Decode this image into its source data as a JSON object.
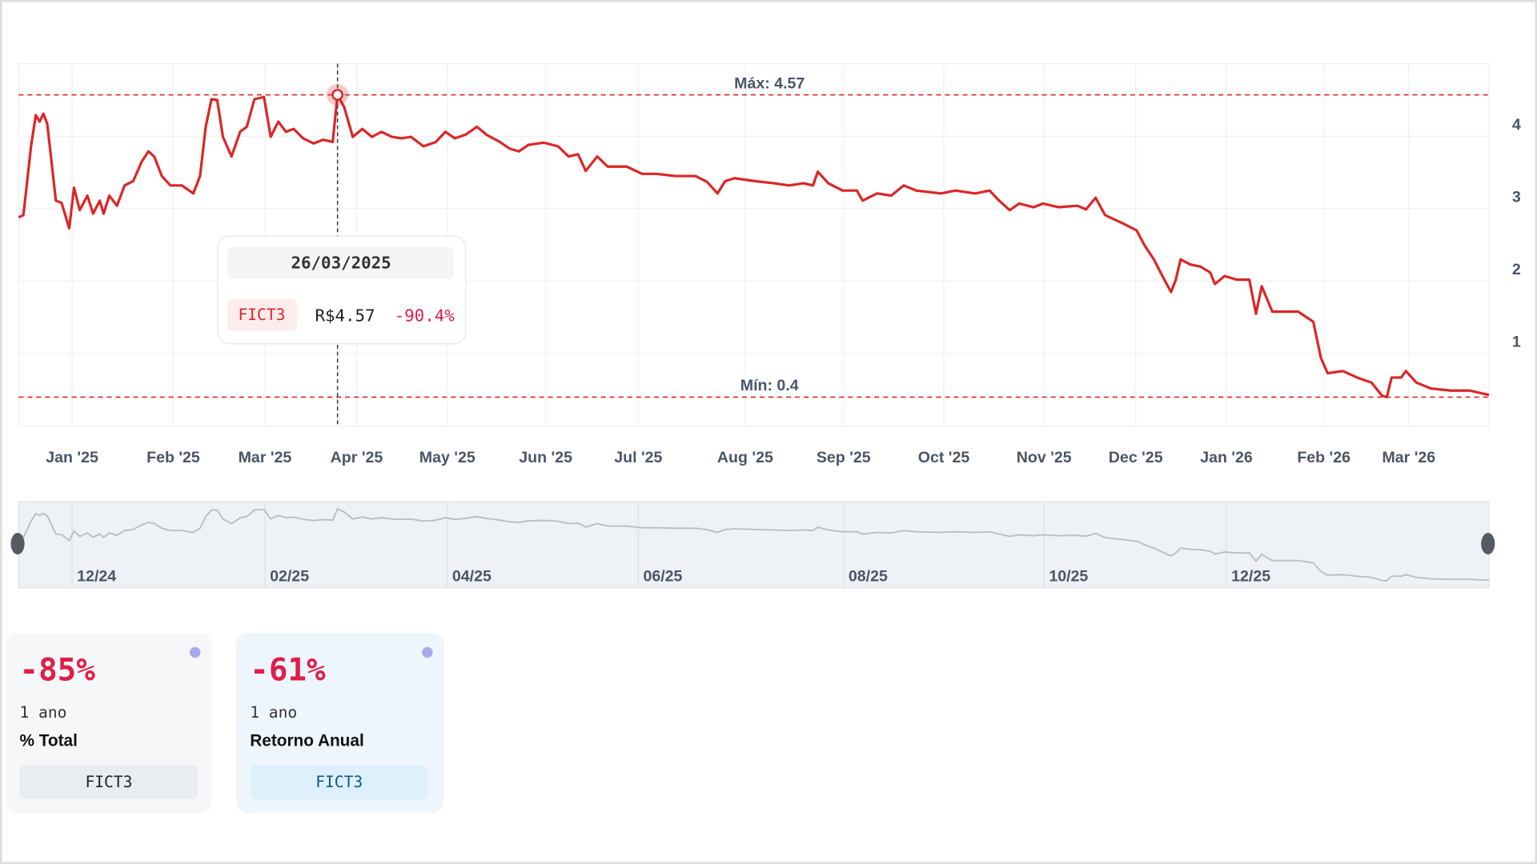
{
  "chart_data": {
    "type": "line",
    "x": [
      0.44,
      0.49,
      0.57,
      0.62,
      0.66,
      0.7,
      0.74,
      0.83,
      0.89,
      0.97,
      1.02,
      1.08,
      1.16,
      1.22,
      1.29,
      1.33,
      1.39,
      1.47,
      1.55,
      1.64,
      1.73,
      1.8,
      1.86,
      1.94,
      2.03,
      2.15,
      2.27,
      2.34,
      2.4,
      2.46,
      2.52,
      2.58,
      2.67,
      2.76,
      2.83,
      2.91,
      3.01,
      3.08,
      3.16,
      3.24,
      3.32,
      3.42,
      3.53,
      3.63,
      3.73,
      3.78,
      3.85,
      3.94,
      4.04,
      4.14,
      4.24,
      4.35,
      4.45,
      4.55,
      4.68,
      4.81,
      4.91,
      5.01,
      5.12,
      5.24,
      5.34,
      5.48,
      5.58,
      5.68,
      5.78,
      5.94,
      6.09,
      6.2,
      6.3,
      6.38,
      6.5,
      6.61,
      6.81,
      6.97,
      7.12,
      7.32,
      7.53,
      7.65,
      7.76,
      7.84,
      7.94,
      8.15,
      8.35,
      8.51,
      8.66,
      8.76,
      8.81,
      8.92,
      9.07,
      9.22,
      9.28,
      9.43,
      9.58,
      9.71,
      9.84,
      10.1,
      10.25,
      10.46,
      10.61,
      10.71,
      10.82,
      10.92,
      11.07,
      11.17,
      11.33,
      11.53,
      11.62,
      11.72,
      11.82,
      12.0,
      12.15,
      12.23,
      12.33,
      12.44,
      12.51,
      12.56,
      12.61,
      12.71,
      12.82,
      12.92,
      12.97,
      13.07,
      13.2,
      13.33,
      13.4,
      13.46,
      13.57,
      13.69,
      13.84,
      14.0,
      14.08,
      14.15,
      14.31,
      14.46,
      14.61,
      14.72,
      14.77,
      14.82,
      14.92,
      14.97,
      15.08,
      15.23,
      15.44,
      15.64,
      15.84
    ],
    "series": [
      {
        "name": "FICT3",
        "color": "#dc2626",
        "values": [
          2.88,
          2.91,
          3.86,
          4.29,
          4.2,
          4.31,
          4.17,
          3.11,
          3.08,
          2.73,
          3.29,
          2.98,
          3.18,
          2.93,
          3.11,
          2.93,
          3.18,
          3.04,
          3.32,
          3.38,
          3.65,
          3.79,
          3.72,
          3.45,
          3.32,
          3.32,
          3.21,
          3.45,
          4.13,
          4.51,
          4.5,
          3.99,
          3.72,
          4.06,
          4.13,
          4.51,
          4.54,
          3.99,
          4.2,
          4.06,
          4.1,
          3.97,
          3.9,
          3.95,
          3.92,
          4.57,
          4.4,
          3.99,
          4.1,
          3.99,
          4.06,
          3.99,
          3.97,
          3.99,
          3.86,
          3.92,
          4.06,
          3.97,
          4.02,
          4.13,
          4.02,
          3.92,
          3.83,
          3.79,
          3.88,
          3.91,
          3.86,
          3.72,
          3.75,
          3.52,
          3.72,
          3.58,
          3.58,
          3.48,
          3.48,
          3.45,
          3.45,
          3.37,
          3.21,
          3.38,
          3.42,
          3.38,
          3.35,
          3.32,
          3.35,
          3.32,
          3.51,
          3.35,
          3.25,
          3.25,
          3.11,
          3.21,
          3.18,
          3.32,
          3.25,
          3.21,
          3.25,
          3.21,
          3.25,
          3.11,
          2.98,
          3.07,
          3.02,
          3.07,
          3.02,
          3.04,
          2.99,
          3.15,
          2.91,
          2.8,
          2.7,
          2.5,
          2.3,
          2.02,
          1.85,
          2.02,
          2.3,
          2.23,
          2.2,
          2.12,
          1.96,
          2.07,
          2.02,
          2.02,
          1.55,
          1.93,
          1.58,
          1.58,
          1.58,
          1.44,
          0.94,
          0.73,
          0.76,
          0.67,
          0.6,
          0.42,
          0.4,
          0.67,
          0.67,
          0.76,
          0.6,
          0.52,
          0.49,
          0.49,
          0.43
        ]
      }
    ],
    "xlim": [
      0.44,
      15.84
    ],
    "ylim": [
      0,
      5
    ],
    "xticks": [
      {
        "value": 1,
        "label": "Jan '25"
      },
      {
        "value": 2.06,
        "label": "Feb '25"
      },
      {
        "value": 3.02,
        "label": "Mar '25"
      },
      {
        "value": 3.98,
        "label": "Apr '25"
      },
      {
        "value": 4.93,
        "label": "May '25"
      },
      {
        "value": 5.96,
        "label": "Jun '25"
      },
      {
        "value": 6.93,
        "label": "Jul '25"
      },
      {
        "value": 8.05,
        "label": "Aug '25"
      },
      {
        "value": 9.08,
        "label": "Sep '25"
      },
      {
        "value": 10.13,
        "label": "Oct '25"
      },
      {
        "value": 11.18,
        "label": "Nov '25"
      },
      {
        "value": 12.14,
        "label": "Dec '25"
      },
      {
        "value": 13.09,
        "label": "Jan '26"
      },
      {
        "value": 14.11,
        "label": "Feb '26"
      },
      {
        "value": 15.0,
        "label": "Mar '26"
      }
    ],
    "yticks": [
      1,
      2,
      3,
      4
    ],
    "grid": true,
    "reference_lines": [
      {
        "value": 4.57,
        "label": "Máx: 4.57"
      },
      {
        "value": 0.4,
        "label": "Mín: 0.4"
      }
    ],
    "tooltip": {
      "x": 3.78,
      "date": "26/03/2025",
      "value": 4.57,
      "value_label": "R$4.57",
      "change": {
        "value": -90.4,
        "label": "-90.4%"
      }
    },
    "navigator": {
      "color": "#b8bcc4",
      "xticks": [
        {
          "value": 1,
          "label": "12/24"
        },
        {
          "value": 3.02,
          "label": "02/25"
        },
        {
          "value": 4.93,
          "label": "04/25"
        },
        {
          "value": 6.93,
          "label": "06/25"
        },
        {
          "value": 9.08,
          "label": "08/25"
        },
        {
          "value": 11.18,
          "label": "10/25"
        },
        {
          "value": 13.09,
          "label": "12/25"
        }
      ]
    }
  },
  "cards": [
    {
      "value": "-85%",
      "period": "1 ano",
      "label": "% Total",
      "ticker": "FICT3"
    },
    {
      "value": "-61%",
      "period": "1 ano",
      "label": "Retorno Anual",
      "ticker": "FICT3"
    }
  ]
}
